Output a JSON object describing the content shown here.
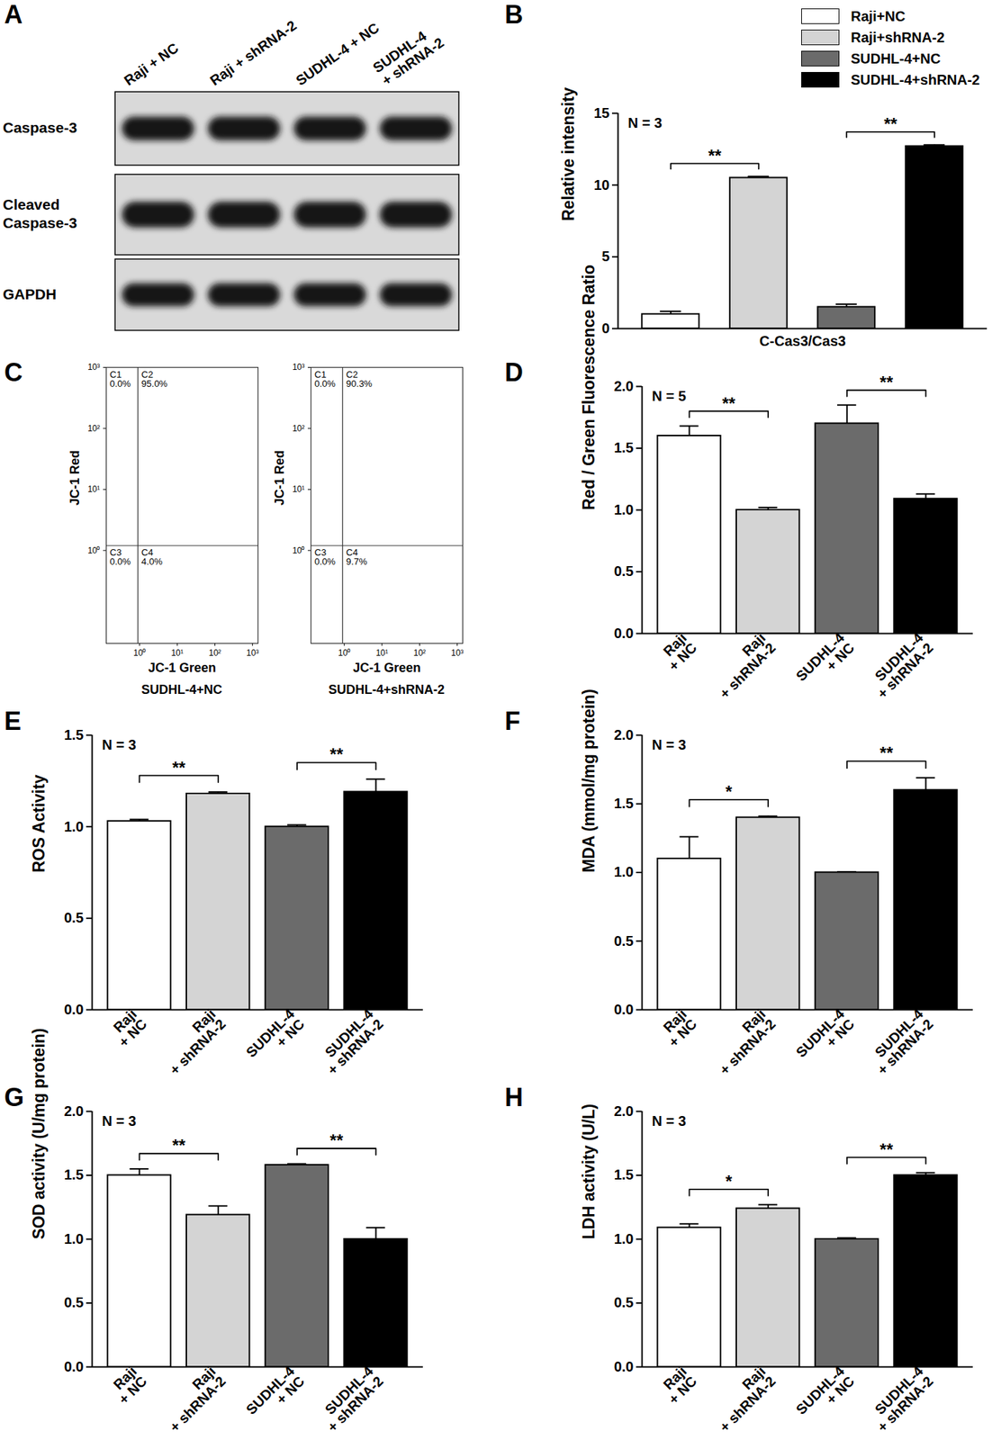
{
  "chart_data": [
    {
      "panel": "A",
      "type": "western_blot",
      "lanes": [
        "Raji + NC",
        "Raji + shRNA-2",
        "SUDHL-4 + NC",
        "SUDHL-4\n+ shRNA-2"
      ],
      "rows": [
        "Caspase-3",
        "Cleaved\nCaspase-3",
        "GAPDH"
      ]
    },
    {
      "panel": "B",
      "type": "bar",
      "categories": [
        "C-Cas3/Cas3"
      ],
      "series": [
        {
          "name": "Raji+NC",
          "color": "#ffffff",
          "values": [
            1.0
          ],
          "errors": [
            0.2
          ]
        },
        {
          "name": "Raji+shRNA-2",
          "color": "#d4d4d4",
          "values": [
            10.5
          ],
          "errors": [
            0.1
          ]
        },
        {
          "name": "SUDHL-4+NC",
          "color": "#6b6b6b",
          "values": [
            1.5
          ],
          "errors": [
            0.2
          ]
        },
        {
          "name": "SUDHL-4+shRNA-2",
          "color": "#000000",
          "values": [
            12.7
          ],
          "errors": [
            0.1
          ]
        }
      ],
      "y_label": "Relative intensity",
      "ylim": [
        0,
        15
      ],
      "yticks": [
        0,
        5,
        10,
        15
      ],
      "legend": "top-right",
      "annotation": "N = 3",
      "significance": [
        {
          "from": 0,
          "to": 1,
          "label": "**"
        },
        {
          "from": 2,
          "to": 3,
          "label": "**"
        }
      ]
    },
    {
      "panel": "C",
      "type": "flow_cytometry",
      "log": true,
      "plots": [
        {
          "x_label": "JC-1 Green",
          "y_label": "JC-1 Red",
          "caption": "SUDHL-4+NC",
          "xlim": [
            0.13,
            1400
          ],
          "ylim": [
            0.03,
            1000
          ],
          "xticks": [
            {
              "value": 1,
              "label": "10⁰"
            },
            {
              "value": 10,
              "label": "10¹"
            },
            {
              "value": 100,
              "label": "10²"
            },
            {
              "value": 1000,
              "label": "10³"
            }
          ],
          "yticks": [
            {
              "value": 1,
              "label": "10⁰"
            },
            {
              "value": 10,
              "label": "10¹"
            },
            {
              "value": 100,
              "label": "10²"
            },
            {
              "value": 1000,
              "label": "10³"
            }
          ],
          "gate": {
            "x": 0.9,
            "y": 1.2
          },
          "quadrants": [
            "C1",
            "C2",
            "C3",
            "C4"
          ],
          "values": [
            0.0,
            95.0,
            0.0,
            4.0
          ],
          "value_labels": [
            "0.0%",
            "95.0%",
            "0.0%",
            "4.0%"
          ]
        },
        {
          "x_label": "JC-1 Green",
          "y_label": "JC-1 Red",
          "caption": "SUDHL-4+shRNA-2",
          "xlim": [
            0.13,
            1400
          ],
          "ylim": [
            0.03,
            1000
          ],
          "xticks": [
            {
              "value": 1,
              "label": "10⁰"
            },
            {
              "value": 10,
              "label": "10¹"
            },
            {
              "value": 100,
              "label": "10²"
            },
            {
              "value": 1000,
              "label": "10³"
            }
          ],
          "yticks": [
            {
              "value": 1,
              "label": "10⁰"
            },
            {
              "value": 10,
              "label": "10¹"
            },
            {
              "value": 100,
              "label": "10²"
            },
            {
              "value": 1000,
              "label": "10³"
            }
          ],
          "gate": {
            "x": 0.9,
            "y": 1.2
          },
          "quadrants": [
            "C1",
            "C2",
            "C3",
            "C4"
          ],
          "values": [
            0.0,
            90.3,
            0.0,
            9.7
          ],
          "value_labels": [
            "0.0%",
            "90.3%",
            "0.0%",
            "9.7%"
          ]
        }
      ]
    },
    {
      "panel": "D",
      "type": "bar",
      "categories": [
        "Raji\n+ NC",
        "Raji\n+ shRNA-2",
        "SUDHL-4\n+ NC",
        "SUDHL-4\n+ shRNA-2"
      ],
      "values": [
        1.6,
        1.0,
        1.7,
        1.09
      ],
      "errors": [
        0.08,
        0.02,
        0.15,
        0.04
      ],
      "colors": [
        "#ffffff",
        "#d4d4d4",
        "#6b6b6b",
        "#000000"
      ],
      "y_label": "Red / Green Fluorescence Ratio",
      "ylim": [
        0,
        2
      ],
      "yticks": [
        {
          "value": 0,
          "label": "0.0"
        },
        {
          "value": 0.5,
          "label": "0.5"
        },
        {
          "value": 1,
          "label": "1.0"
        },
        {
          "value": 1.5,
          "label": "1.5"
        },
        {
          "value": 2,
          "label": "2.0"
        }
      ],
      "annotation": "N = 5",
      "significance": [
        {
          "from": 0,
          "to": 1,
          "label": "**"
        },
        {
          "from": 2,
          "to": 3,
          "label": "**"
        }
      ]
    },
    {
      "panel": "E",
      "type": "bar",
      "categories": [
        "Raji\n+ NC",
        "Raji\n+ shRNA-2",
        "SUDHL-4\n+ NC",
        "SUDHL-4\n+ shRNA-2"
      ],
      "values": [
        1.03,
        1.18,
        1.0,
        1.19
      ],
      "errors": [
        0.01,
        0.01,
        0.01,
        0.07
      ],
      "colors": [
        "#ffffff",
        "#d4d4d4",
        "#6b6b6b",
        "#000000"
      ],
      "y_label": "ROS Activity",
      "ylim": [
        0,
        1.5
      ],
      "yticks": [
        {
          "value": 0,
          "label": "0.0"
        },
        {
          "value": 0.5,
          "label": "0.5"
        },
        {
          "value": 1,
          "label": "1.0"
        },
        {
          "value": 1.5,
          "label": "1.5"
        }
      ],
      "annotation": "N = 3",
      "significance": [
        {
          "from": 0,
          "to": 1,
          "label": "**"
        },
        {
          "from": 2,
          "to": 3,
          "label": "**"
        }
      ]
    },
    {
      "panel": "F",
      "type": "bar",
      "categories": [
        "Raji\n+ NC",
        "Raji\n+ shRNA-2",
        "SUDHL-4\n+ NC",
        "SUDHL-4\n+ shRNA-2"
      ],
      "values": [
        1.1,
        1.4,
        1.0,
        1.6
      ],
      "errors": [
        0.16,
        0.01,
        0.005,
        0.09
      ],
      "colors": [
        "#ffffff",
        "#d4d4d4",
        "#6b6b6b",
        "#000000"
      ],
      "y_label": "MDA (mmol/mg protein)",
      "ylim": [
        0,
        2
      ],
      "yticks": [
        {
          "value": 0,
          "label": "0.0"
        },
        {
          "value": 0.5,
          "label": "0.5"
        },
        {
          "value": 1,
          "label": "1.0"
        },
        {
          "value": 1.5,
          "label": "1.5"
        },
        {
          "value": 2,
          "label": "2.0"
        }
      ],
      "annotation": "N = 3",
      "significance": [
        {
          "from": 0,
          "to": 1,
          "label": "*"
        },
        {
          "from": 2,
          "to": 3,
          "label": "**"
        }
      ]
    },
    {
      "panel": "G",
      "type": "bar",
      "categories": [
        "Raji\n+ NC",
        "Raji\n+ shRNA-2",
        "SUDHL-4\n+ NC",
        "SUDHL-4\n+ shRNA-2"
      ],
      "values": [
        1.5,
        1.19,
        1.58,
        1.0
      ],
      "errors": [
        0.05,
        0.07,
        0.01,
        0.09
      ],
      "colors": [
        "#ffffff",
        "#d4d4d4",
        "#6b6b6b",
        "#000000"
      ],
      "y_label": "SOD activity (U/mg protein)",
      "ylim": [
        0,
        2
      ],
      "yticks": [
        {
          "value": 0,
          "label": "0.0"
        },
        {
          "value": 0.5,
          "label": "0.5"
        },
        {
          "value": 1,
          "label": "1.0"
        },
        {
          "value": 1.5,
          "label": "1.5"
        },
        {
          "value": 2,
          "label": "2.0"
        }
      ],
      "annotation": "N = 3",
      "significance": [
        {
          "from": 0,
          "to": 1,
          "label": "**"
        },
        {
          "from": 2,
          "to": 3,
          "label": "**"
        }
      ]
    },
    {
      "panel": "H",
      "type": "bar",
      "categories": [
        "Raji\n+ NC",
        "Raji\n+ shRNA-2",
        "SUDHL-4\n+ NC",
        "SUDHL-4\n+ shRNA-2"
      ],
      "values": [
        1.09,
        1.24,
        1.0,
        1.5
      ],
      "errors": [
        0.03,
        0.03,
        0.01,
        0.02
      ],
      "colors": [
        "#ffffff",
        "#d4d4d4",
        "#6b6b6b",
        "#000000"
      ],
      "y_label": "LDH activity (U/L)",
      "ylim": [
        0,
        2
      ],
      "yticks": [
        {
          "value": 0,
          "label": "0.0"
        },
        {
          "value": 0.5,
          "label": "0.5"
        },
        {
          "value": 1,
          "label": "1.0"
        },
        {
          "value": 1.5,
          "label": "1.5"
        },
        {
          "value": 2,
          "label": "2.0"
        }
      ],
      "annotation": "N = 3",
      "significance": [
        {
          "from": 0,
          "to": 1,
          "label": "*"
        },
        {
          "from": 2,
          "to": 3,
          "label": "**"
        }
      ]
    }
  ]
}
